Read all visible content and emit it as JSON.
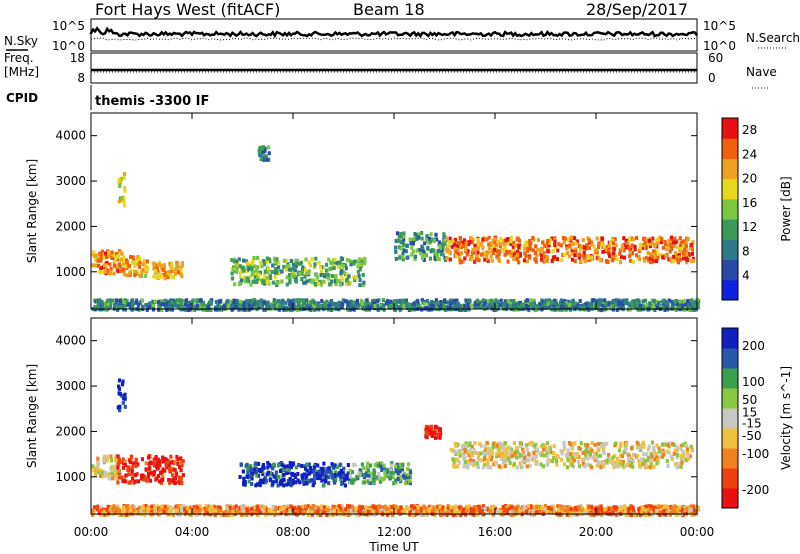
{
  "header": {
    "station": "Fort Hays West (fitACF)",
    "beam": "Beam 18",
    "date": "28/Sep/2017"
  },
  "strips": {
    "nsky_label": "N.Sky",
    "nsearch_label": "N.Search",
    "noise_ticks": [
      "10^5",
      "10^0"
    ],
    "freq_label": "Freq.",
    "freq_unit": "[MHz]",
    "freq_ticks": [
      "18",
      "8"
    ],
    "nave_label": "Nave",
    "nave_ticks": [
      "60",
      "0"
    ],
    "cpid_label": "CPID",
    "cpid_value": "themis -3300 IF"
  },
  "chart_data": [
    {
      "type": "heatmap",
      "parameter": "power",
      "ylabel": "Slant Range [km]",
      "xlabel": "Time UT",
      "ylim": [
        180,
        4500
      ],
      "yticks": [
        1000,
        2000,
        3000,
        4000
      ],
      "xlim_hours": [
        0,
        24
      ],
      "xticks": [
        "00:00",
        "04:00",
        "08:00",
        "12:00",
        "16:00",
        "20:00",
        "00:00"
      ],
      "colorbar": {
        "label": "Power [dB]",
        "ticks": [
          4,
          8,
          12,
          16,
          20,
          24,
          28
        ],
        "range": [
          0,
          30
        ],
        "colors": [
          "#1020e0",
          "#2a4aa8",
          "#2f7a8a",
          "#3b9a5a",
          "#7ac840",
          "#e8d81c",
          "#f0a020",
          "#f06010",
          "#e81010"
        ]
      },
      "regions": [
        {
          "hours": [
            0.0,
            1.2
          ],
          "range_km": [
            1000,
            1500
          ],
          "level": 0.75
        },
        {
          "hours": [
            1.2,
            2.2
          ],
          "range_km": [
            950,
            1400
          ],
          "level": 0.72
        },
        {
          "hours": [
            2.4,
            3.6
          ],
          "range_km": [
            900,
            1250
          ],
          "level": 0.7
        },
        {
          "hours": [
            5.5,
            10.8
          ],
          "range_km": [
            750,
            1350
          ],
          "level": 0.45
        },
        {
          "hours": [
            12.0,
            14.0
          ],
          "range_km": [
            1300,
            1900
          ],
          "level": 0.35
        },
        {
          "hours": [
            14.0,
            23.8
          ],
          "range_km": [
            1250,
            1800
          ],
          "level": 0.8
        },
        {
          "hours": [
            1.0,
            1.3
          ],
          "range_km": [
            2500,
            3200
          ],
          "level": 0.55
        },
        {
          "hours": [
            6.6,
            7.0
          ],
          "range_km": [
            3500,
            3800
          ],
          "level": 0.3
        },
        {
          "hours": [
            0.0,
            24.0
          ],
          "range_km": [
            200,
            420
          ],
          "level": 0.3
        }
      ]
    },
    {
      "type": "heatmap",
      "parameter": "velocity",
      "ylabel": "Slant Range [km]",
      "xlabel": "Time UT",
      "ylim": [
        180,
        4500
      ],
      "yticks": [
        1000,
        2000,
        3000,
        4000
      ],
      "xlim_hours": [
        0,
        24
      ],
      "xticks": [
        "00:00",
        "04:00",
        "08:00",
        "12:00",
        "16:00",
        "20:00",
        "00:00"
      ],
      "colorbar": {
        "label": "Velocity [m s^-1]",
        "ticks": [
          200,
          100,
          50,
          15,
          -15,
          -50,
          -100,
          -200
        ],
        "range": [
          -250,
          250
        ],
        "colors": [
          "#e81010",
          "#f04010",
          "#f08020",
          "#f0c040",
          "#c8c8c0",
          "#88c840",
          "#3aa050",
          "#2a58a8",
          "#1020c0"
        ]
      },
      "regions": [
        {
          "hours": [
            0.0,
            1.0
          ],
          "range_km": [
            1000,
            1500
          ],
          "level": 0.45
        },
        {
          "hours": [
            1.0,
            3.6
          ],
          "range_km": [
            900,
            1500
          ],
          "level": 0.08
        },
        {
          "hours": [
            5.8,
            10.2
          ],
          "range_km": [
            850,
            1350
          ],
          "level": 0.9
        },
        {
          "hours": [
            10.2,
            12.6
          ],
          "range_km": [
            900,
            1350
          ],
          "level": 0.7
        },
        {
          "hours": [
            14.2,
            23.8
          ],
          "range_km": [
            1250,
            1800
          ],
          "level": 0.45
        },
        {
          "hours": [
            13.2,
            13.8
          ],
          "range_km": [
            1900,
            2150
          ],
          "level": 0.05
        },
        {
          "hours": [
            1.0,
            1.3
          ],
          "range_km": [
            2500,
            3200
          ],
          "level": 0.95
        },
        {
          "hours": [
            0.0,
            24.0
          ],
          "range_km": [
            200,
            400
          ],
          "level": 0.3
        }
      ]
    }
  ]
}
